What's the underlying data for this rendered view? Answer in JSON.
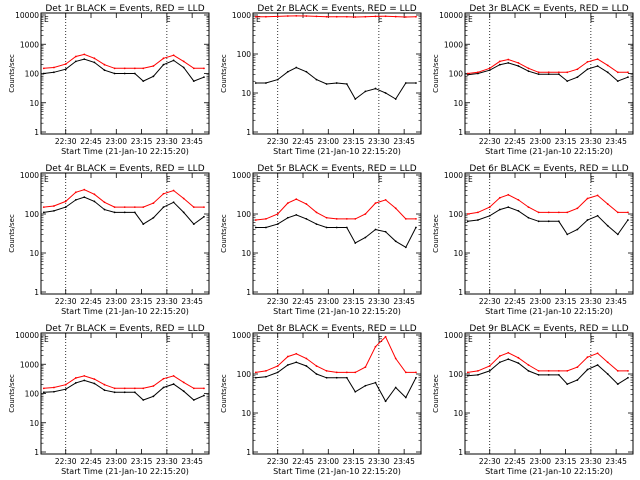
{
  "figure": {
    "x_label": "Start Time (21-Jan-10 22:15:20)",
    "y_label": "Counts/sec",
    "x_tick_labels": [
      "22:30",
      "22:45",
      "23:00",
      "23:15",
      "23:30",
      "23:45"
    ],
    "y_tick_labels": [
      "1",
      "10",
      "100",
      "1000",
      "10000"
    ],
    "flag_marker": "E",
    "colors": {
      "events": "#000000",
      "lld": "#ff0000",
      "axes": "#000000"
    }
  },
  "chart_data": [
    {
      "type": "line",
      "title": "Det 1r BLACK = Events, RED = LLD",
      "xlabel": "Start Time (21-Jan-10 22:15:20)",
      "ylabel": "Counts/sec",
      "y_scale": "log",
      "ylim": [
        1,
        10000
      ],
      "xlim": [
        "22:15:20",
        "23:55:00"
      ],
      "x_ticks": [
        "22:30",
        "22:45",
        "23:00",
        "23:15",
        "23:30",
        "23:45"
      ],
      "y_ticks": [
        1,
        10,
        100,
        1000,
        10000
      ],
      "dotted_vlines": [
        "22:30",
        "23:30"
      ],
      "x": [
        "22:17",
        "22:23",
        "22:30",
        "22:36",
        "22:41",
        "22:47",
        "22:53",
        "22:59",
        "23:05",
        "23:11",
        "23:16",
        "23:22",
        "23:28",
        "23:34",
        "23:40",
        "23:46",
        "23:52"
      ],
      "series": [
        {
          "name": "Events",
          "color": "#000000",
          "values": [
            100,
            110,
            140,
            260,
            310,
            240,
            130,
            100,
            100,
            100,
            55,
            80,
            200,
            280,
            160,
            55,
            75
          ]
        },
        {
          "name": "LLD",
          "color": "#ff0000",
          "values": [
            150,
            160,
            210,
            380,
            450,
            330,
            200,
            150,
            150,
            150,
            150,
            180,
            330,
            420,
            260,
            150,
            150
          ]
        }
      ]
    },
    {
      "type": "line",
      "title": "Det 2r BLACK = Events, RED = LLD",
      "xlabel": "Start Time (21-Jan-10 22:15:20)",
      "ylabel": "Counts/sec",
      "y_scale": "log",
      "ylim": [
        1,
        1000
      ],
      "xlim": [
        "22:15:20",
        "23:55:00"
      ],
      "x_ticks": [
        "22:30",
        "22:45",
        "23:00",
        "23:15",
        "23:30",
        "23:45"
      ],
      "y_ticks": [
        1,
        10,
        100,
        1000
      ],
      "dotted_vlines": [
        "22:30",
        "23:30"
      ],
      "x": [
        "22:17",
        "22:23",
        "22:30",
        "22:36",
        "22:41",
        "22:47",
        "22:53",
        "22:59",
        "23:05",
        "23:11",
        "23:16",
        "23:22",
        "23:28",
        "23:34",
        "23:40",
        "23:46",
        "23:52"
      ],
      "series": [
        {
          "name": "Events",
          "color": "#000000",
          "values": [
            18,
            18,
            22,
            35,
            45,
            35,
            22,
            17,
            18,
            17,
            7,
            11,
            13,
            10,
            7,
            18,
            18
          ]
        },
        {
          "name": "LLD",
          "color": "#ff0000",
          "values": [
            900,
            900,
            920,
            940,
            950,
            940,
            920,
            900,
            900,
            900,
            890,
            900,
            920,
            930,
            910,
            890,
            900
          ]
        }
      ]
    },
    {
      "type": "line",
      "title": "Det 3r BLACK = Events, RED = LLD",
      "xlabel": "Start Time (21-Jan-10 22:15:20)",
      "ylabel": "Counts/sec",
      "y_scale": "log",
      "ylim": [
        1,
        10000
      ],
      "xlim": [
        "22:15:20",
        "23:55:00"
      ],
      "x_ticks": [
        "22:30",
        "22:45",
        "23:00",
        "23:15",
        "23:30",
        "23:45"
      ],
      "y_ticks": [
        1,
        10,
        100,
        1000,
        10000
      ],
      "dotted_vlines": [
        "22:30",
        "23:30"
      ],
      "x": [
        "22:17",
        "22:23",
        "22:30",
        "22:36",
        "22:41",
        "22:47",
        "22:53",
        "22:59",
        "23:05",
        "23:11",
        "23:16",
        "23:22",
        "23:28",
        "23:34",
        "23:40",
        "23:46",
        "23:52"
      ],
      "series": [
        {
          "name": "Events",
          "color": "#000000",
          "values": [
            90,
            100,
            130,
            200,
            230,
            180,
            120,
            95,
            95,
            95,
            55,
            75,
            140,
            180,
            110,
            55,
            75
          ]
        },
        {
          "name": "LLD",
          "color": "#ff0000",
          "values": [
            100,
            110,
            150,
            260,
            300,
            230,
            150,
            110,
            110,
            110,
            110,
            140,
            250,
            310,
            190,
            110,
            110
          ]
        }
      ]
    },
    {
      "type": "line",
      "title": "Det 4r BLACK = Events, RED = LLD",
      "xlabel": "Start Time (21-Jan-10 22:15:20)",
      "ylabel": "Counts/sec",
      "y_scale": "log",
      "ylim": [
        1,
        1000
      ],
      "xlim": [
        "22:15:20",
        "23:55:00"
      ],
      "x_ticks": [
        "22:30",
        "22:45",
        "23:00",
        "23:15",
        "23:30",
        "23:45"
      ],
      "y_ticks": [
        1,
        10,
        100,
        1000
      ],
      "dotted_vlines": [
        "22:30",
        "23:30"
      ],
      "x": [
        "22:17",
        "22:23",
        "22:30",
        "22:36",
        "22:41",
        "22:47",
        "22:53",
        "22:59",
        "23:05",
        "23:11",
        "23:16",
        "23:22",
        "23:28",
        "23:34",
        "23:40",
        "23:46",
        "23:52"
      ],
      "series": [
        {
          "name": "Events",
          "color": "#000000",
          "values": [
            110,
            120,
            150,
            230,
            270,
            210,
            130,
            110,
            110,
            110,
            55,
            80,
            150,
            200,
            110,
            55,
            85
          ]
        },
        {
          "name": "LLD",
          "color": "#ff0000",
          "values": [
            150,
            160,
            210,
            360,
            420,
            320,
            200,
            150,
            150,
            150,
            150,
            190,
            330,
            400,
            250,
            150,
            150
          ]
        }
      ]
    },
    {
      "type": "line",
      "title": "Det 5r BLACK = Events, RED = LLD",
      "xlabel": "Start Time (21-Jan-10 22:15:20)",
      "ylabel": "Counts/sec",
      "y_scale": "log",
      "ylim": [
        1,
        1000
      ],
      "xlim": [
        "22:15:20",
        "23:55:00"
      ],
      "x_ticks": [
        "22:30",
        "22:45",
        "23:00",
        "23:15",
        "23:30",
        "23:45"
      ],
      "y_ticks": [
        1,
        10,
        100,
        1000
      ],
      "dotted_vlines": [
        "22:30",
        "23:30"
      ],
      "x": [
        "22:17",
        "22:23",
        "22:30",
        "22:36",
        "22:41",
        "22:47",
        "22:53",
        "22:59",
        "23:05",
        "23:11",
        "23:16",
        "23:22",
        "23:28",
        "23:34",
        "23:40",
        "23:46",
        "23:52"
      ],
      "series": [
        {
          "name": "Events",
          "color": "#000000",
          "values": [
            45,
            45,
            55,
            80,
            95,
            75,
            55,
            45,
            45,
            45,
            18,
            25,
            40,
            35,
            20,
            14,
            45
          ]
        },
        {
          "name": "LLD",
          "color": "#ff0000",
          "values": [
            70,
            75,
            100,
            190,
            240,
            180,
            110,
            80,
            75,
            75,
            75,
            100,
            190,
            230,
            140,
            75,
            75
          ]
        }
      ]
    },
    {
      "type": "line",
      "title": "Det 6r BLACK = Events, RED = LLD",
      "xlabel": "Start Time (21-Jan-10 22:15:20)",
      "ylabel": "Counts/sec",
      "y_scale": "log",
      "ylim": [
        1,
        1000
      ],
      "xlim": [
        "22:15:20",
        "23:55:00"
      ],
      "x_ticks": [
        "22:30",
        "22:45",
        "23:00",
        "23:15",
        "23:30",
        "23:45"
      ],
      "y_ticks": [
        1,
        10,
        100,
        1000
      ],
      "dotted_vlines": [
        "22:30",
        "23:30"
      ],
      "x": [
        "22:17",
        "22:23",
        "22:30",
        "22:36",
        "22:41",
        "22:47",
        "22:53",
        "22:59",
        "23:05",
        "23:11",
        "23:16",
        "23:22",
        "23:28",
        "23:34",
        "23:40",
        "23:46",
        "23:52"
      ],
      "series": [
        {
          "name": "Events",
          "color": "#000000",
          "values": [
            65,
            70,
            90,
            130,
            150,
            120,
            80,
            65,
            65,
            65,
            30,
            40,
            70,
            90,
            50,
            30,
            70
          ]
        },
        {
          "name": "LLD",
          "color": "#ff0000",
          "values": [
            100,
            110,
            150,
            260,
            310,
            230,
            150,
            110,
            110,
            110,
            110,
            140,
            250,
            300,
            180,
            110,
            110
          ]
        }
      ]
    },
    {
      "type": "line",
      "title": "Det 7r BLACK = Events, RED = LLD",
      "xlabel": "Start Time (21-Jan-10 22:15:20)",
      "ylabel": "Counts/sec",
      "y_scale": "log",
      "ylim": [
        1,
        10000
      ],
      "xlim": [
        "22:15:20",
        "23:55:00"
      ],
      "x_ticks": [
        "22:30",
        "22:45",
        "23:00",
        "23:15",
        "23:30",
        "23:45"
      ],
      "y_ticks": [
        1,
        10,
        100,
        1000,
        10000
      ],
      "dotted_vlines": [
        "22:30",
        "23:30"
      ],
      "x": [
        "22:17",
        "22:23",
        "22:30",
        "22:36",
        "22:41",
        "22:47",
        "22:53",
        "22:59",
        "23:05",
        "23:11",
        "23:16",
        "23:22",
        "23:28",
        "23:34",
        "23:40",
        "23:46",
        "23:52"
      ],
      "series": [
        {
          "name": "Events",
          "color": "#000000",
          "values": [
            110,
            115,
            140,
            230,
            280,
            220,
            130,
            110,
            110,
            110,
            60,
            80,
            160,
            210,
            120,
            60,
            85
          ]
        },
        {
          "name": "LLD",
          "color": "#ff0000",
          "values": [
            150,
            160,
            200,
            340,
            400,
            310,
            200,
            150,
            150,
            150,
            150,
            180,
            320,
            400,
            240,
            150,
            150
          ]
        }
      ]
    },
    {
      "type": "line",
      "title": "Det 8r BLACK = Events, RED = LLD",
      "xlabel": "Start Time (21-Jan-10 22:15:20)",
      "ylabel": "Counts/sec",
      "y_scale": "log",
      "ylim": [
        1,
        1000
      ],
      "xlim": [
        "22:15:20",
        "23:55:00"
      ],
      "x_ticks": [
        "22:30",
        "22:45",
        "23:00",
        "23:15",
        "23:30",
        "23:45"
      ],
      "y_ticks": [
        1,
        10,
        100,
        1000
      ],
      "dotted_vlines": [
        "22:30",
        "23:30"
      ],
      "x": [
        "22:17",
        "22:23",
        "22:30",
        "22:36",
        "22:41",
        "22:47",
        "22:53",
        "22:59",
        "23:05",
        "23:11",
        "23:16",
        "23:22",
        "23:28",
        "23:34",
        "23:40",
        "23:46",
        "23:52"
      ],
      "series": [
        {
          "name": "Events",
          "color": "#000000",
          "values": [
            80,
            85,
            110,
            170,
            200,
            160,
            100,
            80,
            80,
            80,
            35,
            50,
            60,
            20,
            45,
            25,
            80
          ]
        },
        {
          "name": "LLD",
          "color": "#ff0000",
          "values": [
            110,
            120,
            160,
            280,
            330,
            250,
            160,
            120,
            110,
            110,
            110,
            150,
            500,
            900,
            250,
            110,
            110
          ]
        }
      ]
    },
    {
      "type": "line",
      "title": "Det 9r BLACK = Events, RED = LLD",
      "xlabel": "Start Time (21-Jan-10 22:15:20)",
      "ylabel": "Counts/sec",
      "y_scale": "log",
      "ylim": [
        1,
        1000
      ],
      "xlim": [
        "22:15:20",
        "23:55:00"
      ],
      "x_ticks": [
        "22:30",
        "22:45",
        "23:00",
        "23:15",
        "23:30",
        "23:45"
      ],
      "y_ticks": [
        1,
        10,
        100,
        1000
      ],
      "dotted_vlines": [
        "22:30",
        "23:30"
      ],
      "x": [
        "22:17",
        "22:23",
        "22:30",
        "22:36",
        "22:41",
        "22:47",
        "22:53",
        "22:59",
        "23:05",
        "23:11",
        "23:16",
        "23:22",
        "23:28",
        "23:34",
        "23:40",
        "23:46",
        "23:52"
      ],
      "series": [
        {
          "name": "Events",
          "color": "#000000",
          "values": [
            90,
            95,
            120,
            200,
            240,
            190,
            120,
            95,
            95,
            95,
            55,
            70,
            130,
            170,
            100,
            55,
            80
          ]
        },
        {
          "name": "LLD",
          "color": "#ff0000",
          "values": [
            110,
            120,
            160,
            290,
            350,
            260,
            170,
            120,
            120,
            120,
            120,
            150,
            270,
            340,
            200,
            120,
            120
          ]
        }
      ]
    }
  ]
}
